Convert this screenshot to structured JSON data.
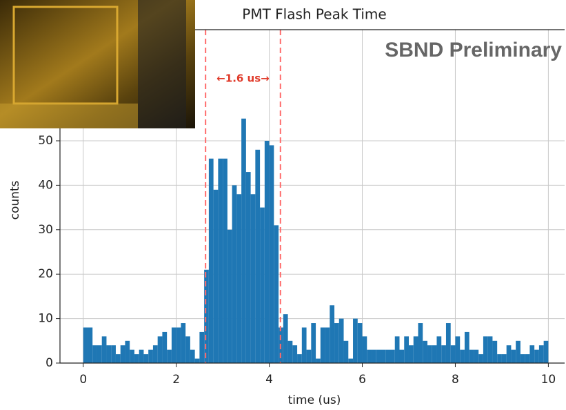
{
  "chart_data": {
    "type": "histogram",
    "title": "PMT Flash Peak Time",
    "watermark": "SBND Preliminary",
    "annotation": "←1.6 us→",
    "xlabel": "time (us)",
    "ylabel": "counts",
    "color": "#1f77b4",
    "bins": [
      0,
      0.1,
      0.2,
      0.3,
      0.4,
      0.5,
      0.6,
      0.7,
      0.8,
      0.9,
      1,
      1.1,
      1.2,
      1.3,
      1.4,
      1.5,
      1.6,
      1.7,
      1.8,
      1.9,
      2,
      2.1,
      2.2,
      2.3,
      2.4,
      2.5,
      2.6,
      2.7,
      2.8,
      2.9,
      3,
      3.1,
      3.2,
      3.3,
      3.4,
      3.5,
      3.6,
      3.7,
      3.8,
      3.9,
      4,
      4.1,
      4.2,
      4.3,
      4.4,
      4.5,
      4.6,
      4.7,
      4.8,
      4.9,
      5,
      5.1,
      5.2,
      5.3,
      5.4,
      5.5,
      5.6,
      5.7,
      5.8,
      5.9,
      6,
      6.1,
      6.2,
      6.3,
      6.4,
      6.5,
      6.6,
      6.7,
      6.8,
      6.9,
      7,
      7.1,
      7.2,
      7.3,
      7.4,
      7.5,
      7.6,
      7.7,
      7.8,
      7.9,
      8,
      8.1,
      8.2,
      8.3,
      8.4,
      8.5,
      8.6,
      8.7,
      8.8,
      8.9,
      9,
      9.1,
      9.2,
      9.3,
      9.4,
      9.5,
      9.6,
      9.7,
      9.8,
      9.9,
      10
    ],
    "values": [
      8,
      8,
      4,
      4,
      6,
      4,
      4,
      2,
      4,
      5,
      3,
      2,
      3,
      2,
      3,
      4,
      6,
      7,
      3,
      8,
      8,
      9,
      6,
      3,
      1,
      7,
      21,
      46,
      39,
      46,
      46,
      30,
      40,
      38,
      55,
      43,
      38,
      48,
      35,
      50,
      49,
      31,
      8,
      11,
      5,
      4,
      2,
      8,
      3,
      9,
      1,
      8,
      8,
      13,
      9,
      10,
      5,
      1,
      10,
      9,
      6,
      3,
      3,
      3,
      3,
      3,
      3,
      6,
      3,
      6,
      4,
      6,
      9,
      5,
      4,
      4,
      6,
      4,
      9,
      4,
      6,
      3,
      7,
      3,
      3,
      2,
      6,
      6,
      5,
      2,
      2,
      4,
      3,
      5,
      2,
      2,
      4,
      3,
      4,
      5
    ],
    "vlines": [
      2.63,
      4.24
    ],
    "vline_color": "#ff6b6b",
    "xlim": [
      -0.5,
      10.35
    ],
    "ylim": [
      0,
      75
    ],
    "xticks": [
      0,
      2,
      4,
      6,
      8,
      10
    ],
    "yticks": [
      0,
      10,
      20,
      30,
      40,
      50
    ],
    "grid": true
  }
}
